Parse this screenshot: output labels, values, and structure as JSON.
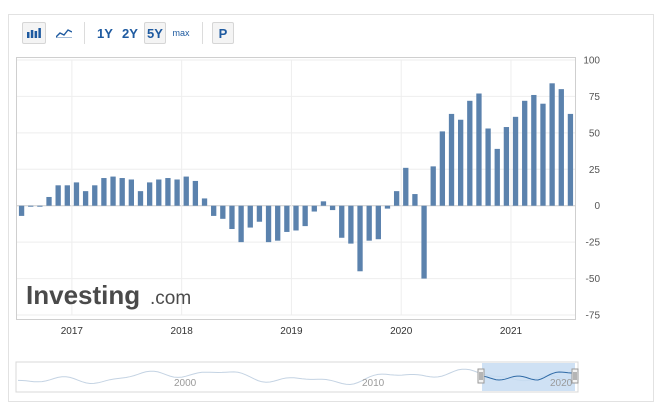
{
  "toolbar": {
    "bar_chart_icon": "bar-chart-icon",
    "line_chart_icon": "line-chart-icon",
    "range_buttons": [
      {
        "label": "1Y",
        "selected": false
      },
      {
        "label": "2Y",
        "selected": false
      },
      {
        "label": "5Y",
        "selected": true
      },
      {
        "label": "max",
        "selected": false
      }
    ],
    "p_button": "P"
  },
  "watermark": {
    "brand": "Investing",
    "suffix": ".com"
  },
  "colors": {
    "bar": "#5b82ad",
    "grid": "#eeeeee",
    "navigator_fill": "#c7dcf2",
    "navigator_line": "#2f6aa6",
    "logo": "#4a4a4a"
  },
  "navigator": {
    "labels": [
      "2000",
      "2010",
      "2020"
    ],
    "selected_range": [
      "2016",
      "2021"
    ]
  },
  "chart_data": {
    "type": "bar",
    "title": "",
    "xlabel": "",
    "ylabel": "",
    "ylim": [
      -75,
      100
    ],
    "yticks": [
      100,
      75,
      50,
      25,
      0,
      -25,
      -50,
      -75
    ],
    "yaxis_position": "right",
    "xticks": [
      {
        "label": "2017",
        "month_index": 6
      },
      {
        "label": "2018",
        "month_index": 18
      },
      {
        "label": "2019",
        "month_index": 30
      },
      {
        "label": "2020",
        "month_index": 42
      },
      {
        "label": "2021",
        "month_index": 54
      }
    ],
    "x_start": "2016-07",
    "values": [
      -7,
      0,
      0,
      6,
      14,
      14,
      16,
      10,
      14,
      19,
      20,
      19,
      18,
      10,
      16,
      18,
      19,
      18,
      20,
      17,
      5,
      -7,
      -9,
      -16,
      -25,
      -15,
      -11,
      -25,
      -24,
      -18,
      -17,
      -14,
      -4,
      3,
      -3,
      -22,
      -26,
      -45,
      -24,
      -23,
      -2,
      10,
      26,
      8,
      -50,
      27,
      51,
      63,
      59,
      72,
      77,
      53,
      39,
      54,
      61,
      72,
      76,
      70,
      84,
      80,
      63
    ],
    "grid": true,
    "legend": "none"
  }
}
